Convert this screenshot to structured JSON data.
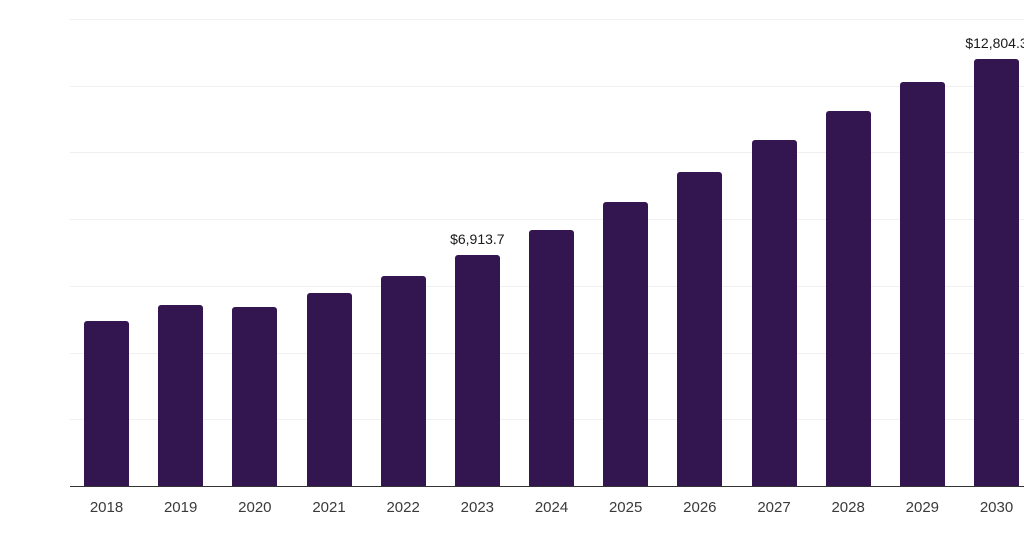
{
  "chart_data": {
    "type": "bar",
    "title": "",
    "xlabel": "",
    "ylabel": "",
    "categories": [
      "2018",
      "2019",
      "2020",
      "2021",
      "2022",
      "2023",
      "2024",
      "2025",
      "2026",
      "2027",
      "2028",
      "2029",
      "2030"
    ],
    "values": [
      4940,
      5440,
      5360,
      5780,
      6310,
      6913.7,
      7660,
      8500,
      9420,
      10380,
      11250,
      12120,
      12804.3
    ],
    "data_labels": [
      "",
      "",
      "",
      "",
      "",
      "$6,913.7",
      "",
      "",
      "",
      "",
      "",
      "",
      "$12,804.3"
    ],
    "ylim": [
      0,
      14000
    ],
    "gridline_values": [
      2000,
      4000,
      6000,
      8000,
      10000,
      12000,
      14000
    ],
    "grid": true,
    "legend_position": "none",
    "bar_color": "#331550",
    "axis_line_color": "#333333",
    "gridline_color": "#f0f0f2",
    "label_text_color": "#1a1a1a",
    "tick_text_color": "#3a3a3a"
  }
}
